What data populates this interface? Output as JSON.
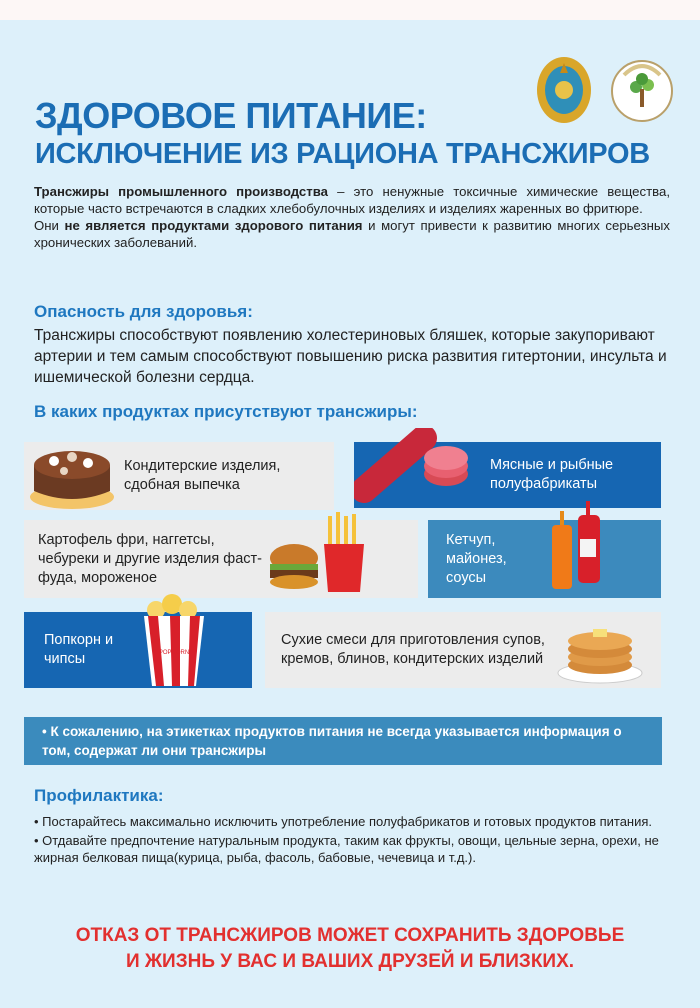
{
  "header": {
    "title_line1": "ЗДОРОВОЕ ПИТАНИЕ:",
    "title_line2": "ИСКЛЮЧЕНИЕ ИЗ РАЦИОНА ТРАНСЖИРОВ",
    "logos": [
      "kazakhstan-emblem",
      "public-health-logo"
    ]
  },
  "intro": {
    "bold1": "Трансжиры промышленного производства",
    "text1": " – это ненужные токсичные химические вещества, которые часто встречаются в сладких хлебобулочных изделиях и изделиях жаренных во фритюре.",
    "text2a": "Они ",
    "bold2": "не является продуктами здорового питания",
    "text2b": " и могут привести  к развитию многих серьезных хронических заболеваний."
  },
  "danger": {
    "heading": "Опасность для здоровья:",
    "text": "Трансжиры способствуют появлению холестериновых бляшек, которые закупоривают артерии  и тем самым способствуют повышению риска развития гитертонии, инсульта и ишемической болезни сердца."
  },
  "products": {
    "heading": "В каких продуктах присутствуют трансжиры:",
    "items": [
      {
        "label": "Кондитерские изделия, сдобная выпечка",
        "icon": "cake-icon"
      },
      {
        "label": "Мясные и рыбные полуфабрикаты",
        "icon": "sausage-icon"
      },
      {
        "label": "Картофель фри, наггетсы, чебуреки и другие  изделия фаст-фуда, мороженое",
        "icon": "burger-fries-icon"
      },
      {
        "label": "Кетчуп, майонез, соусы",
        "icon": "sauce-bottles-icon"
      },
      {
        "label": "Попкорн и чипсы",
        "icon": "popcorn-icon",
        "popcorn_text": "POPCORN"
      },
      {
        "label": "Сухие смеси для приготовления супов, кремов, блинов, кондитерских изделий",
        "icon": "pancakes-icon"
      }
    ],
    "note": "• К сожалению, на этикетках  продуктов питания не всегда указывается информация о том, содержат ли они трансжиры"
  },
  "prevention": {
    "heading": "Профилактика:",
    "bullets": [
      "•  Постарайтесь максимально исключить употребление полуфабрикатов  и готовых продуктов питания.",
      "•  Отдавайте предпочтение натуральным продукта, таким как фрукты, овощи, цельные зерна, орехи, не жирная белковая пища(курица, рыба, фасоль, бабовые, чечевица и т.д.)."
    ]
  },
  "footer": {
    "line1": "ОТКАЗ ОТ ТРАНСЖИРОВ МОЖЕТ СОХРАНИТЬ ЗДОРОВЬЕ",
    "line2": "И ЖИЗНЬ У ВАС И ВАШИХ ДРУЗЕЙ И БЛИЗКИХ."
  },
  "colors": {
    "title": "#1b6db4",
    "card_blue": "#1666b2",
    "card_teal": "#3c8abd",
    "card_gray": "#ececec",
    "footer_red": "#e2302f",
    "background": "#ddf0fa"
  }
}
